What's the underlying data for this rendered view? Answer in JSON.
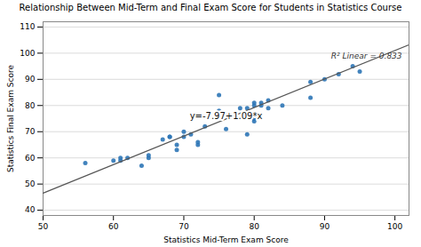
{
  "chart_data": {
    "type": "scatter",
    "title": "Relationship Between Mid-Term and Final Exam Score for Students in Statistics Course",
    "xlabel": "Statistics Mid-Term Exam Score",
    "ylabel": "Statistics Final Exam Score",
    "xlim": [
      50,
      102
    ],
    "ylim": [
      38,
      112
    ],
    "xticks": [
      50,
      60,
      70,
      80,
      90,
      100
    ],
    "yticks": [
      40,
      50,
      60,
      70,
      80,
      90,
      100,
      110
    ],
    "grid": true,
    "series": [
      {
        "type": "scatter",
        "color": "#2e75b6",
        "x": [
          56,
          60,
          61,
          61,
          62,
          64,
          65,
          65,
          67,
          68,
          68,
          69,
          69,
          70,
          70,
          71,
          72,
          72,
          73,
          75,
          75,
          76,
          78,
          79,
          79,
          80,
          80,
          80,
          80,
          81,
          81,
          82,
          82,
          84,
          88,
          88,
          90,
          92,
          94,
          95
        ],
        "values": [
          58,
          59,
          60,
          59,
          60,
          57,
          60,
          61,
          67,
          68,
          68,
          63,
          65,
          68,
          70,
          69,
          65,
          66,
          72,
          78,
          84,
          71,
          79,
          69,
          79,
          74,
          75,
          80,
          81,
          81,
          80,
          82,
          79,
          80,
          83,
          89,
          90,
          92,
          95,
          93
        ]
      },
      {
        "type": "line",
        "color": "#555555",
        "x": [
          50,
          102
        ],
        "values": [
          46.53,
          103.21
        ]
      }
    ],
    "annotations": [
      {
        "text": "y=-7.97+1.09*x",
        "x": 76,
        "y": 76
      },
      {
        "text": "R² Linear = 0.833",
        "x": 101,
        "y": 100
      }
    ]
  }
}
